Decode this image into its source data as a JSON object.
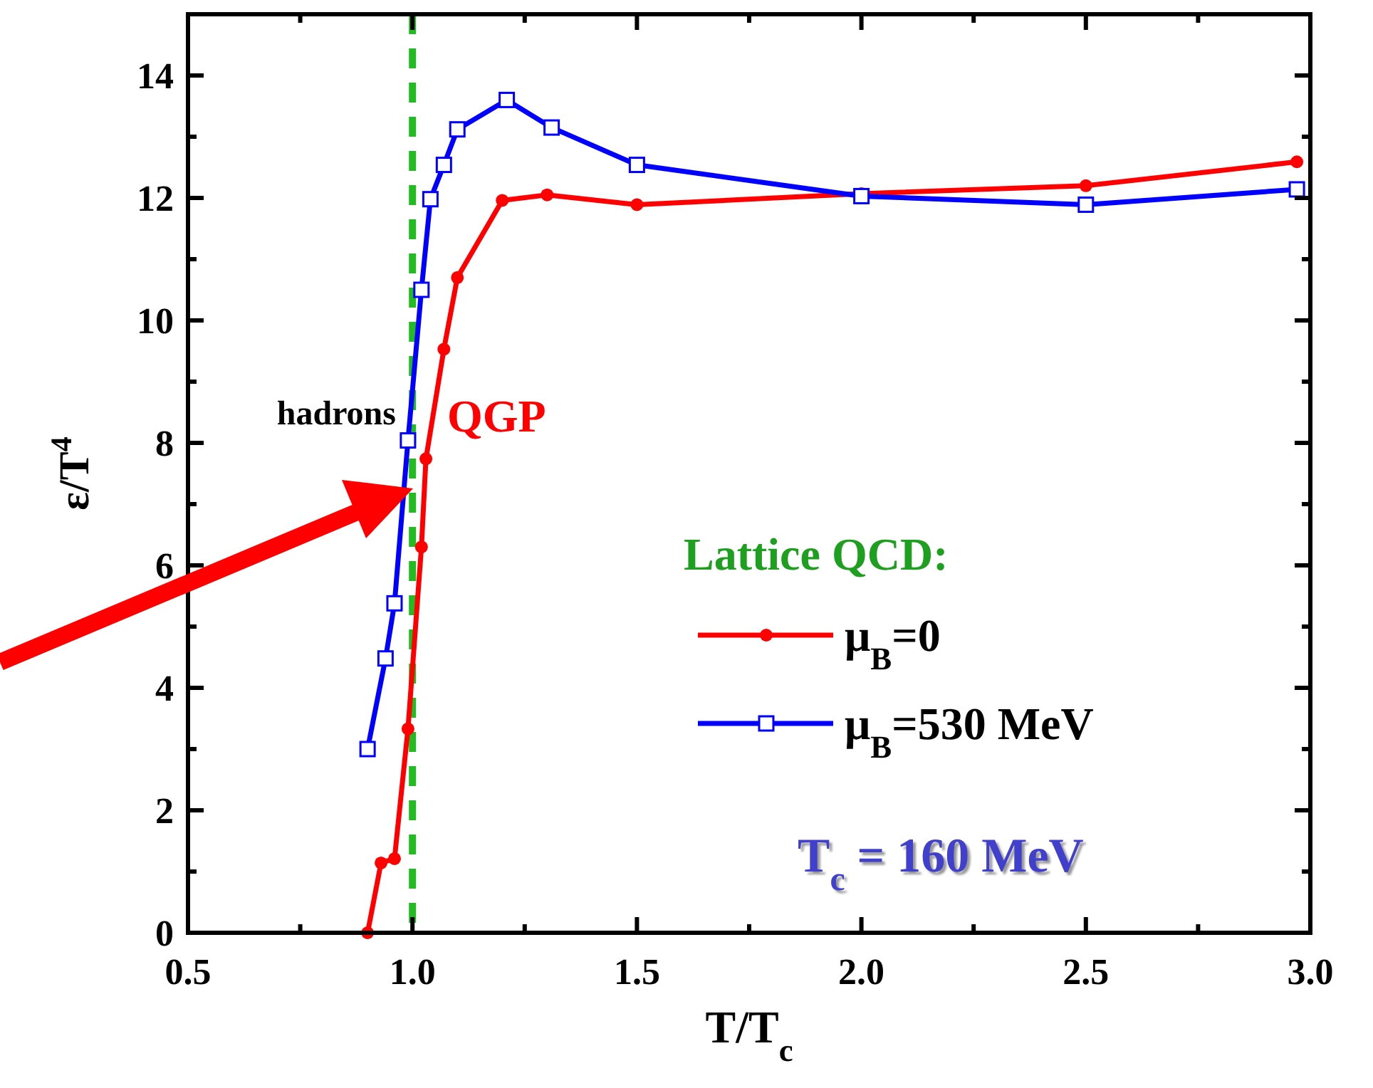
{
  "chart_data": {
    "type": "line",
    "xlabel": "T/T$_{c}$",
    "ylabel": "ε/T$^{4}$",
    "legend_title": "Lattice QCD:",
    "legend": "bottom right",
    "marker": "circle",
    "line_style": "solid",
    "xlim": [
      0.5,
      3.0
    ],
    "xticks": [
      0.5,
      {
        "value": 0.75,
        "label": null
      },
      "1.0",
      {
        "value": 1.25,
        "label": null
      },
      1.5,
      {
        "value": 1.75,
        "label": null
      },
      "2.0",
      {
        "value": 2.25,
        "label": null
      },
      2.5,
      {
        "value": 2.75,
        "label": null
      },
      "3.0"
    ],
    "ylim": [
      0,
      15
    ],
    "yticks": [
      0,
      {
        "value": 1,
        "label": null
      },
      2,
      {
        "value": 3,
        "label": null
      },
      4,
      {
        "value": 5,
        "label": null
      },
      6,
      {
        "value": 7,
        "label": null
      },
      8,
      {
        "value": 9,
        "label": null
      },
      10,
      {
        "value": 11,
        "label": null
      },
      12,
      {
        "value": 13,
        "label": null
      },
      14
    ],
    "series": [
      {
        "name": "μ$_{B}$=0",
        "color": "#ff0000",
        "marker": "circle",
        "x": [
          0.9,
          0.93,
          0.96,
          0.99,
          1.02,
          1.03,
          1.07,
          1.1,
          1.2,
          1.3,
          1.5,
          2.0,
          2.5,
          2.97
        ],
        "values": [
          0,
          1.14,
          1.21,
          3.33,
          6.3,
          7.74,
          9.53,
          10.7,
          11.96,
          12.05,
          11.89,
          12.07,
          12.2,
          12.59
        ]
      },
      {
        "name": "μ$_{B}$=530 MeV",
        "color": "#0000ff",
        "marker": "square",
        "x": [
          0.9,
          0.94,
          0.96,
          0.99,
          1.02,
          1.04,
          1.07,
          1.1,
          1.21,
          1.31,
          1.5,
          2.0,
          2.5,
          2.97
        ],
        "values": [
          3.0,
          4.48,
          5.38,
          8.04,
          10.5,
          11.98,
          12.54,
          13.12,
          13.6,
          13.15,
          12.54,
          12.03,
          11.89,
          12.14
        ]
      }
    ],
    "ref_lines": [
      {
        "axis": "x",
        "value": 1.0,
        "color": "#22bb22",
        "line_style": "dashed"
      }
    ],
    "annotations": [
      "hadrons",
      "QGP",
      "T$_{c}$ = 160 MeV"
    ]
  }
}
